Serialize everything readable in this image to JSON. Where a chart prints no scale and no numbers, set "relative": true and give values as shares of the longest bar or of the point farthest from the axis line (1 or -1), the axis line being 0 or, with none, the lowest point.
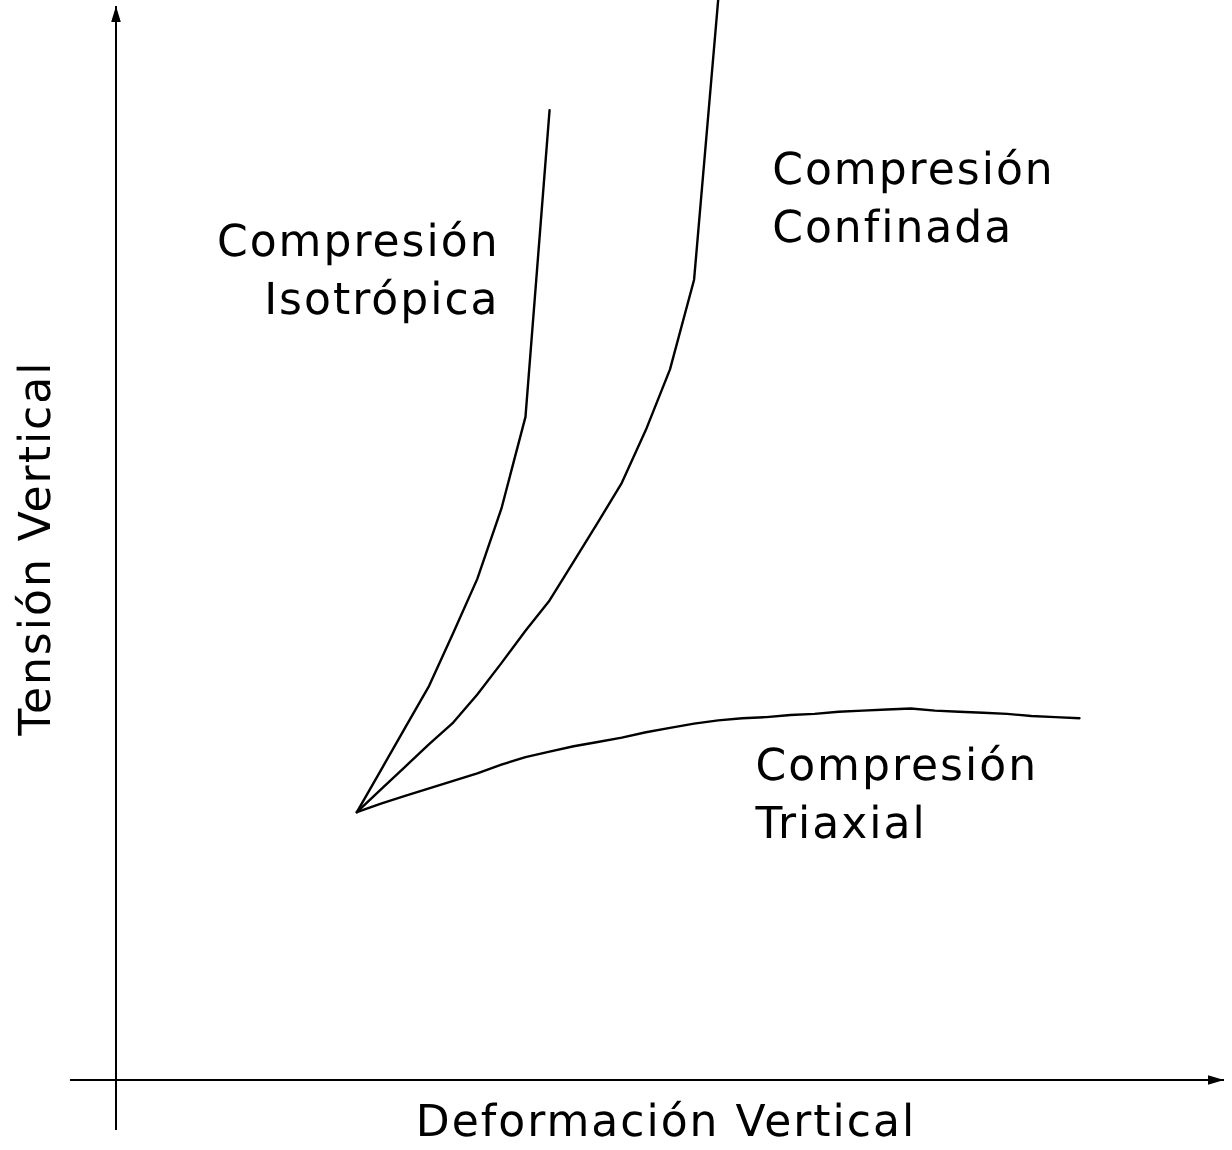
{
  "chart_data": {
    "type": "line",
    "relative": true,
    "xlabel": "Deformación Vertical",
    "ylabel": "Tensión Vertical",
    "line_style": "solid",
    "categories": [
      null,
      null,
      null,
      null,
      null,
      null,
      null,
      null,
      null,
      null,
      null,
      null,
      null,
      null,
      null,
      null,
      null,
      null,
      null,
      null,
      null,
      null,
      null,
      null,
      null,
      null,
      null,
      null,
      null,
      null,
      null,
      null,
      null,
      null,
      null,
      null,
      null,
      null,
      null,
      null,
      null,
      null,
      null,
      null,
      null,
      null,
      null
    ],
    "series": [
      {
        "name": "Compresión Isotrópica",
        "color": "#000000",
        "values": [
          null,
          null,
          null,
          null,
          null,
          null,
          null,
          null,
          null,
          null,
          0.248,
          0.287,
          0.326,
          0.365,
          0.414,
          0.464,
          0.529,
          0.614,
          0.898,
          null,
          null,
          null,
          null,
          null,
          null,
          null,
          null,
          null,
          null,
          null,
          null,
          null,
          null,
          null,
          null,
          null,
          null,
          null,
          null,
          null,
          null,
          null,
          null,
          null,
          null,
          null,
          null
        ]
      },
      {
        "name": "Compresión Confinada",
        "color": "#000000",
        "values": [
          null,
          null,
          null,
          null,
          null,
          null,
          null,
          null,
          null,
          null,
          0.248,
          0.269,
          0.29,
          0.311,
          0.331,
          0.357,
          0.386,
          0.416,
          0.444,
          0.48,
          0.516,
          0.553,
          0.602,
          0.658,
          0.741,
          1,
          null,
          null,
          null,
          null,
          null,
          null,
          null,
          null,
          null,
          null,
          null,
          null,
          null,
          null,
          null,
          null,
          null,
          null,
          null,
          null,
          null
        ]
      },
      {
        "name": "Compresión Triaxial",
        "color": "#000000",
        "values": [
          null,
          null,
          null,
          null,
          null,
          null,
          null,
          null,
          null,
          null,
          0.248,
          0.256,
          0.263,
          0.27,
          0.277,
          0.284,
          0.292,
          0.299,
          0.304,
          0.309,
          0.313,
          0.317,
          0.322,
          0.326,
          0.33,
          0.333,
          0.335,
          0.336,
          0.338,
          0.339,
          0.341,
          0.342,
          0.343,
          0.344,
          0.342,
          0.341,
          0.34,
          0.339,
          0.337,
          0.336,
          0.335,
          null,
          null,
          null,
          null,
          null,
          null
        ]
      }
    ]
  }
}
